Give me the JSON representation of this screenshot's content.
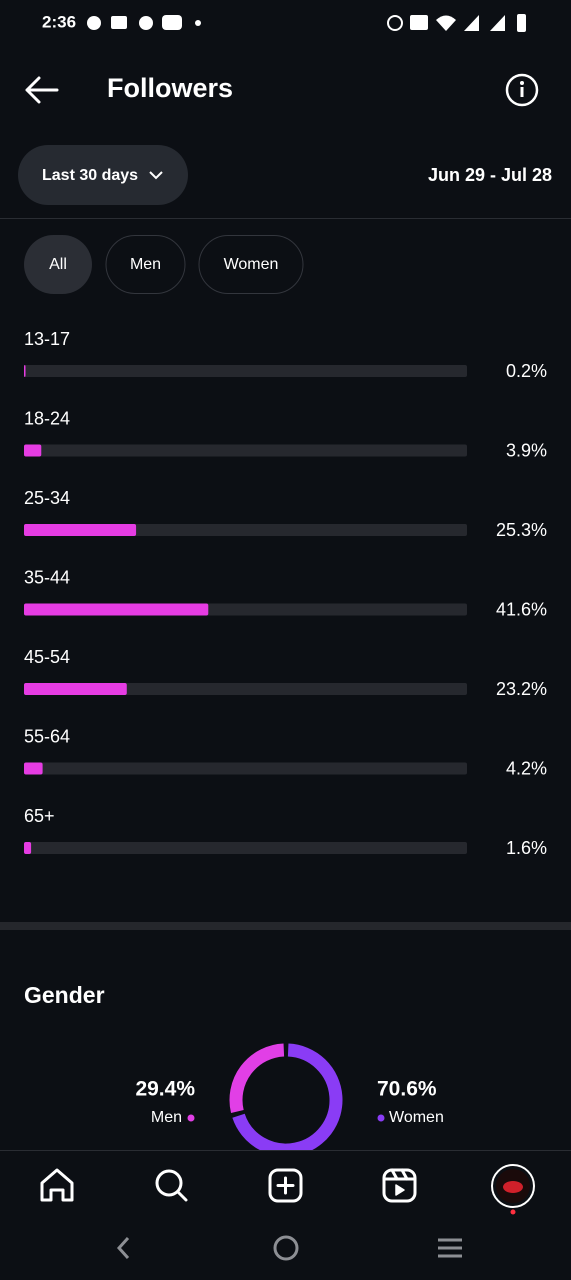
{
  "status_bar": {
    "time": "2:36"
  },
  "header": {
    "title": "Followers"
  },
  "filter": {
    "period": "Last 30 days",
    "date_range": "Jun 29 - Jul 28"
  },
  "tabs": [
    "All",
    "Men",
    "Women"
  ],
  "chart_data": [
    {
      "type": "bar",
      "orientation": "horizontal",
      "categories": [
        "13-17",
        "18-24",
        "25-34",
        "35-44",
        "45-54",
        "55-64",
        "65+"
      ],
      "values": [
        0.2,
        3.9,
        25.3,
        41.6,
        23.2,
        4.2,
        1.6
      ],
      "value_labels": [
        "0.2%",
        "3.9%",
        "25.3%",
        "41.6%",
        "23.2%",
        "4.2%",
        "1.6%"
      ],
      "xlim": [
        0,
        100
      ],
      "color": "#e63ce3",
      "track_color": "#26282e"
    },
    {
      "type": "pie",
      "title": "Gender",
      "donut": true,
      "categories": [
        "Men",
        "Women"
      ],
      "values": [
        29.4,
        70.6
      ],
      "value_labels": [
        "29.4%",
        "70.6%"
      ],
      "colors": [
        "#e13fe6",
        "#8a3cf5"
      ]
    }
  ]
}
